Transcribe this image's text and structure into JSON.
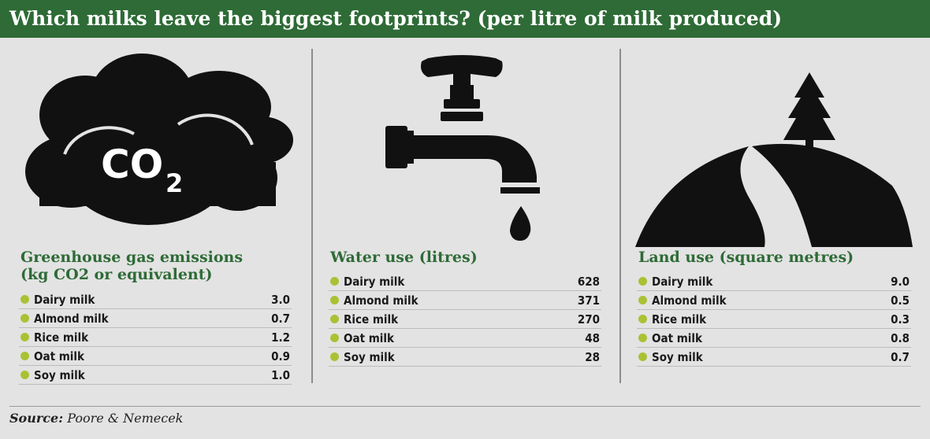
{
  "title": "Which milks leave the biggest footprints? (per litre of milk produced)",
  "source_label": "Source:",
  "source_text": "Poore & Nemecek",
  "colors": {
    "header": "#2e6b36",
    "heading_text": "#2e6b36",
    "bullet": "#a9c234",
    "icon": "#111111",
    "background": "#e3e3e3"
  },
  "chart_data": [
    {
      "type": "table",
      "icon": "co2-cloud-icon",
      "icon_text": "CO2",
      "title": "Greenhouse gas emissions (kg CO2 or equivalent)",
      "title_lines": [
        "Greenhouse gas emissions",
        "(kg CO2 or equivalent)"
      ],
      "categories": [
        "Dairy milk",
        "Almond milk",
        "Rice milk",
        "Oat milk",
        "Soy milk"
      ],
      "display_values": [
        "3.0",
        "0.7",
        "1.2",
        "0.9",
        "1.0"
      ],
      "values": [
        3.0,
        0.7,
        1.2,
        0.9,
        1.0
      ]
    },
    {
      "type": "table",
      "icon": "water-tap-icon",
      "title": "Water use (litres)",
      "title_lines": [
        "Water use (litres)"
      ],
      "categories": [
        "Dairy milk",
        "Almond milk",
        "Rice milk",
        "Oat milk",
        "Soy milk"
      ],
      "display_values": [
        "628",
        "371",
        "270",
        "48",
        "28"
      ],
      "values": [
        628,
        371,
        270,
        48,
        28
      ]
    },
    {
      "type": "table",
      "icon": "land-tree-icon",
      "title": "Land use (square metres)",
      "title_lines": [
        "Land use (square metres)"
      ],
      "categories": [
        "Dairy milk",
        "Almond milk",
        "Rice milk",
        "Oat milk",
        "Soy milk"
      ],
      "display_values": [
        "9.0",
        "0.5",
        "0.3",
        "0.8",
        "0.7"
      ],
      "values": [
        9.0,
        0.5,
        0.3,
        0.8,
        0.7
      ]
    }
  ]
}
